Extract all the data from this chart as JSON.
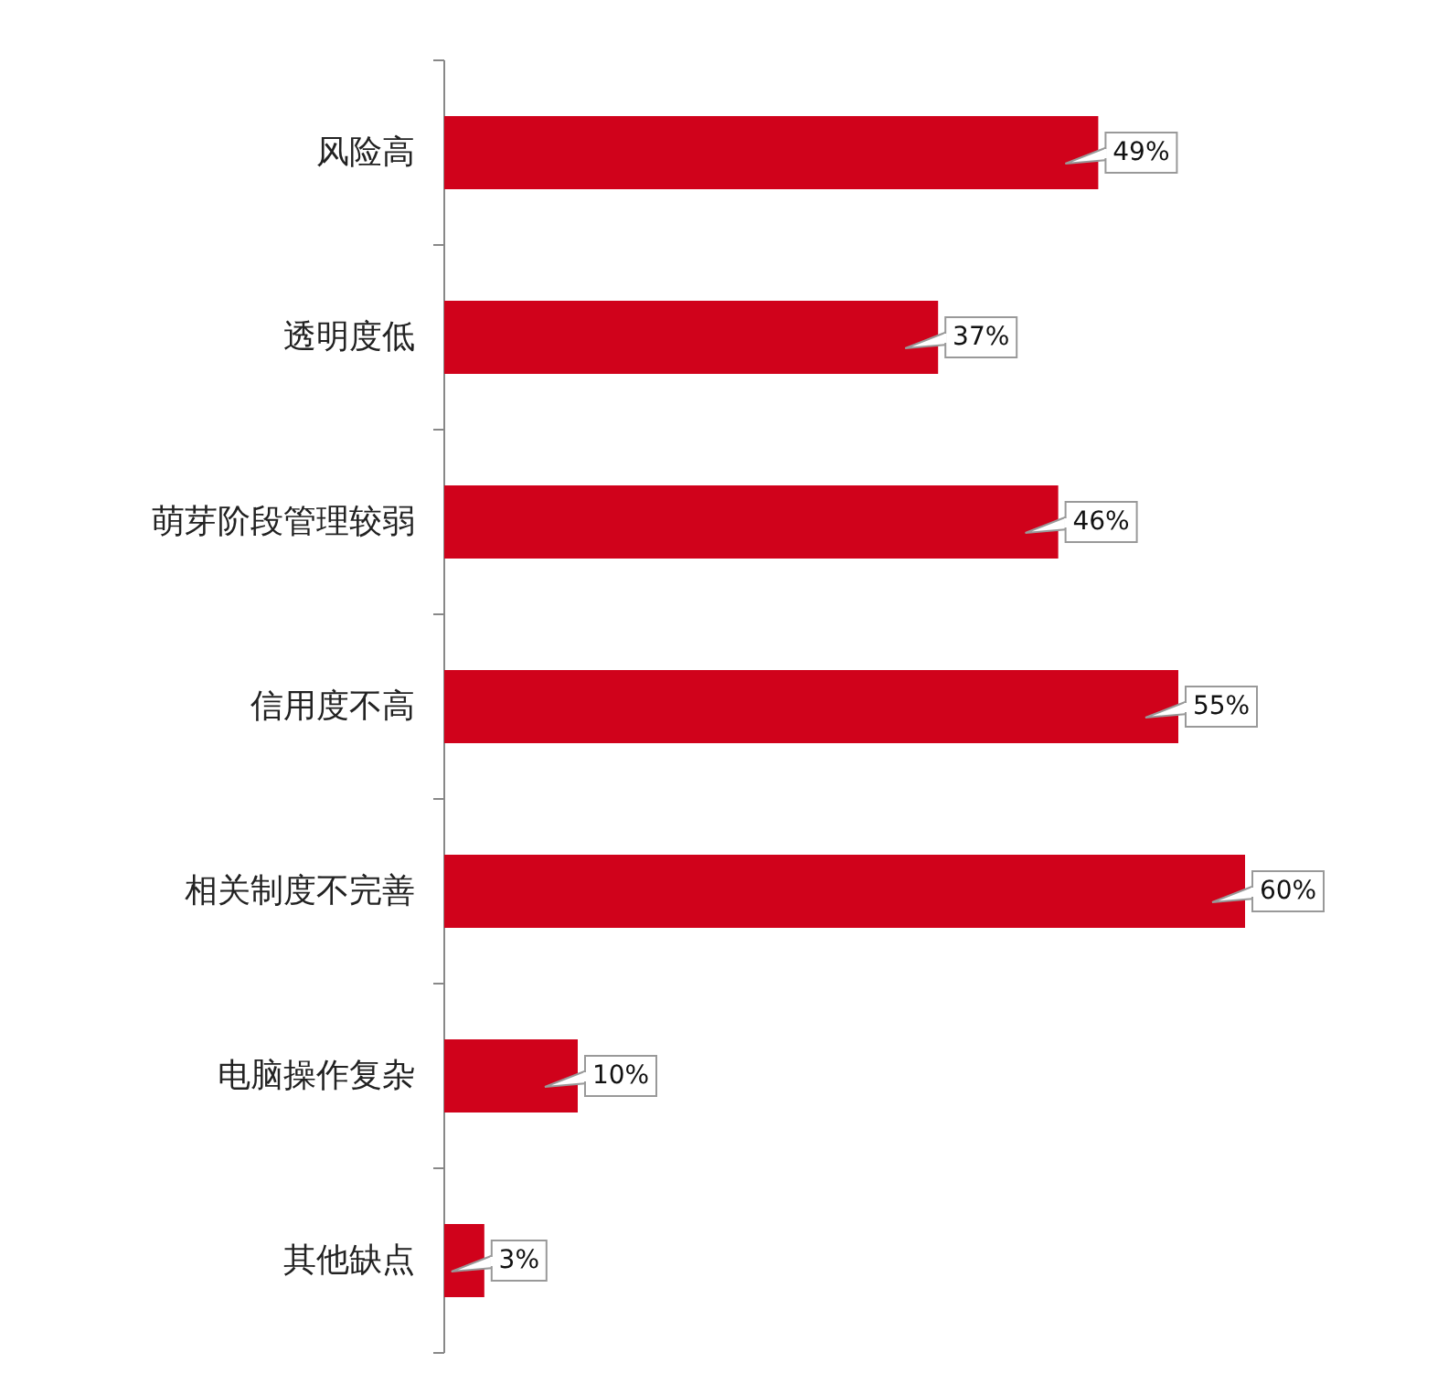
{
  "chart_data": {
    "type": "bar",
    "orientation": "horizontal",
    "categories": [
      "风险高",
      "透明度低",
      "萌芽阶段管理较弱",
      "信用度不高",
      "相关制度不完善",
      "电脑操作复杂",
      "其他缺点"
    ],
    "values": [
      49,
      37,
      46,
      55,
      60,
      10,
      3
    ],
    "value_labels": [
      "49%",
      "37%",
      "46%",
      "55%",
      "60%",
      "10%",
      "3%"
    ],
    "color": "#d0021b"
  }
}
